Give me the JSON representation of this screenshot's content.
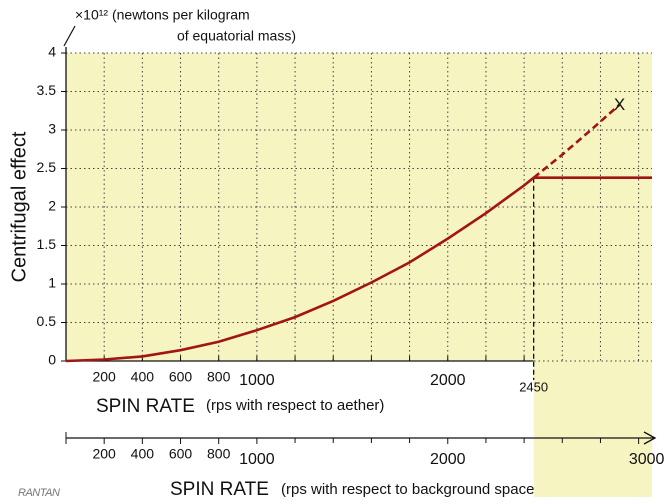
{
  "chart_data": {
    "type": "line",
    "y_label": "Centrifugal effect",
    "y_unit_note": [
      "×10¹² (newtons per kilogram",
      "of equatorial mass)"
    ],
    "x_label": "SPIN RATE",
    "x_label_note": "(rps with respect to aether)",
    "x2_label": "SPIN RATE",
    "x2_label_note": "(rps with respect to background space)",
    "logo": "RANTAN",
    "xlim": [
      0,
      3070
    ],
    "ylim": [
      0,
      4
    ],
    "xticks": [
      200,
      400,
      600,
      800,
      1000,
      2000,
      2450
    ],
    "xgrid": [
      200,
      400,
      600,
      800,
      1000,
      1200,
      1400,
      1600,
      1800,
      2000,
      2200,
      2400,
      2600,
      2800,
      3000
    ],
    "yticks": [
      0,
      0.5,
      1,
      1.5,
      2,
      2.5,
      3,
      3.5,
      4
    ],
    "x2lim": [
      0,
      3070
    ],
    "x2ticks": [
      200,
      400,
      600,
      800,
      1000,
      2000,
      3000
    ],
    "x2minor": [
      1200,
      1400,
      1600,
      1800,
      2200,
      2400,
      2600,
      2800
    ],
    "grid": true,
    "shade_color": "#f6f5c2",
    "series": [
      {
        "color": "#a31515",
        "style": "solid",
        "x": [
          0,
          200,
          400,
          600,
          800,
          1000,
          1200,
          1400,
          1600,
          1800,
          2000,
          2200,
          2400,
          2450
        ],
        "values": [
          0,
          0.02,
          0.06,
          0.14,
          0.25,
          0.4,
          0.57,
          0.78,
          1.02,
          1.28,
          1.59,
          1.92,
          2.28,
          2.38
        ]
      },
      {
        "color": "#a31515",
        "style": "solid",
        "x": [
          2450,
          3070
        ],
        "values": [
          2.38,
          2.38
        ]
      },
      {
        "color": "#a31515",
        "style": "dashed",
        "x": [
          2450,
          2600,
          2750,
          2900
        ],
        "values": [
          2.38,
          2.68,
          3.0,
          3.33
        ]
      }
    ],
    "annotation": {
      "x": 2900,
      "y": 3.33,
      "label": "X"
    }
  }
}
